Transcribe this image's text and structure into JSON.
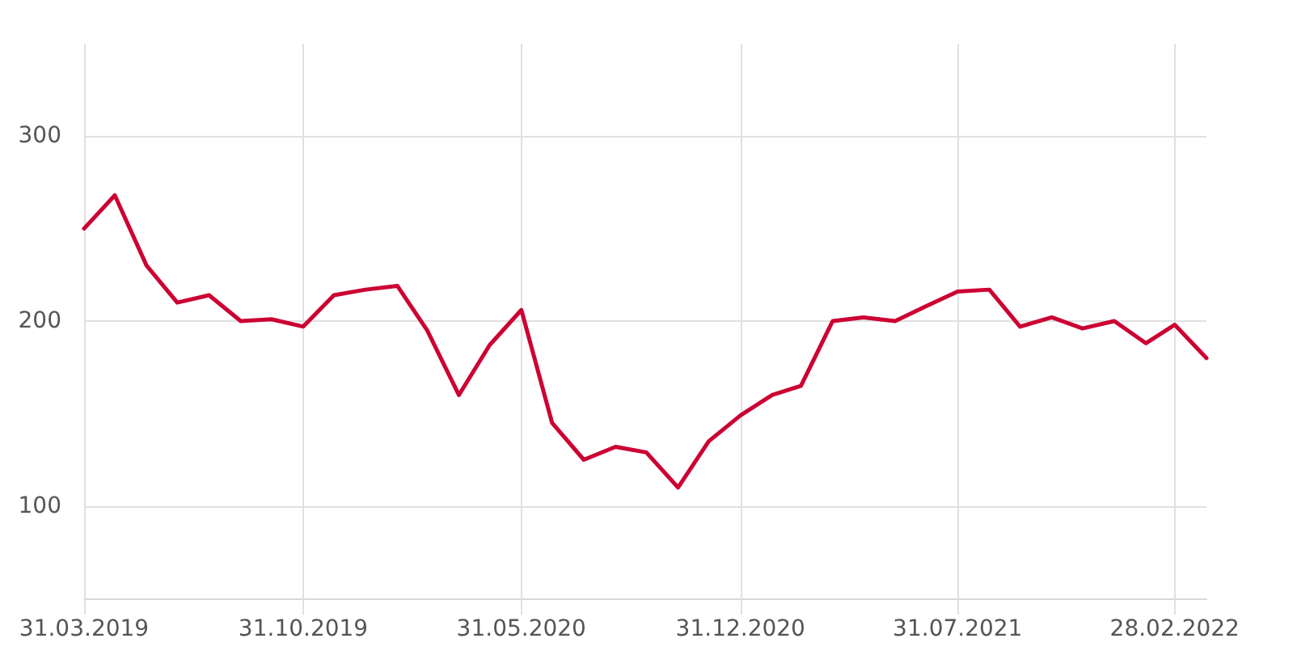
{
  "chart_data": {
    "type": "line",
    "x": [
      "2019-03-31",
      "2019-04-30",
      "2019-05-31",
      "2019-06-30",
      "2019-07-31",
      "2019-08-31",
      "2019-09-30",
      "2019-10-31",
      "2019-11-30",
      "2019-12-31",
      "2020-01-31",
      "2020-02-29",
      "2020-03-31",
      "2020-04-30",
      "2020-05-31",
      "2020-06-30",
      "2020-07-31",
      "2020-08-31",
      "2020-09-30",
      "2020-10-31",
      "2020-11-30",
      "2020-12-31",
      "2021-01-31",
      "2021-02-28",
      "2021-03-31",
      "2021-04-30",
      "2021-05-31",
      "2021-06-30",
      "2021-07-31",
      "2021-08-31",
      "2021-09-30",
      "2021-10-31",
      "2021-11-30",
      "2021-12-31",
      "2022-01-31",
      "2022-02-28",
      "2022-03-31"
    ],
    "series": [
      {
        "color": "#cc0033",
        "values": [
          250,
          268,
          230,
          210,
          214,
          200,
          201,
          197,
          214,
          217,
          219,
          195,
          160,
          187,
          206,
          145,
          125,
          132,
          129,
          110,
          135,
          149,
          160,
          165,
          200,
          202,
          200,
          208,
          216,
          217,
          197,
          202,
          196,
          200,
          188,
          198,
          180
        ]
      }
    ],
    "xlim": [
      "2019-03-31",
      "2022-03-31"
    ],
    "xticks": [
      {
        "value": "2019-03-31",
        "label": "31.03.2019"
      },
      {
        "value": "2019-10-31",
        "label": "31.10.2019"
      },
      {
        "value": "2020-05-31",
        "label": "31.05.2020"
      },
      {
        "value": "2020-12-31",
        "label": "31.12.2020"
      },
      {
        "value": "2021-07-31",
        "label": "31.07.2021"
      },
      {
        "value": "2022-02-28",
        "label": "28.02.2022"
      }
    ],
    "ylim": [
      50,
      350
    ],
    "yticks": [
      100,
      200,
      300
    ],
    "grid": true,
    "marker": "none",
    "line_style": "solid"
  }
}
